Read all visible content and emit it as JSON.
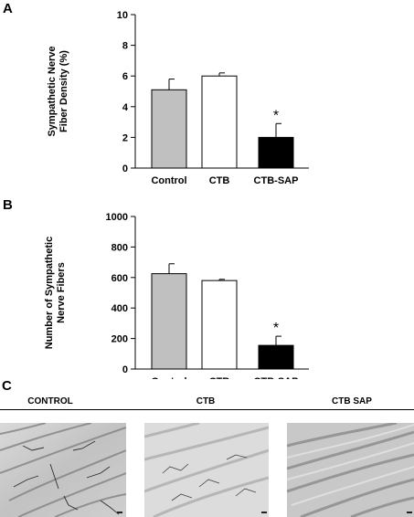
{
  "panels": {
    "a": {
      "letter": "A"
    },
    "b": {
      "letter": "B"
    },
    "c": {
      "letter": "C"
    }
  },
  "micrographs": {
    "titles": [
      "CONTROL",
      "CTB",
      "CTB SAP"
    ]
  },
  "chart_data": [
    {
      "type": "bar",
      "categories": [
        "Control",
        "CTB",
        "CTB-SAP"
      ],
      "values": [
        5.1,
        6.0,
        2.0
      ],
      "errors": [
        0.7,
        0.2,
        0.9
      ],
      "colors": [
        "#c0c0c0",
        "#ffffff",
        "#000000"
      ],
      "annotations": [
        "",
        "",
        "*"
      ],
      "ylabel": [
        "Sympathetic Nerve",
        "Fiber Density (%)"
      ],
      "ylim": [
        0,
        10
      ],
      "yticks": [
        0,
        2,
        4,
        6,
        8,
        10
      ],
      "grid": false
    },
    {
      "type": "bar",
      "categories": [
        "Control",
        "CTB",
        "CTB-SAP"
      ],
      "values": [
        625,
        580,
        155
      ],
      "errors": [
        65,
        8,
        60
      ],
      "colors": [
        "#c0c0c0",
        "#ffffff",
        "#000000"
      ],
      "annotations": [
        "",
        "",
        "*"
      ],
      "ylabel": [
        "Number of Sympathetic",
        "Nerve Fibers"
      ],
      "ylim": [
        0,
        1000
      ],
      "yticks": [
        0,
        200,
        400,
        600,
        800,
        1000
      ],
      "grid": false
    }
  ]
}
